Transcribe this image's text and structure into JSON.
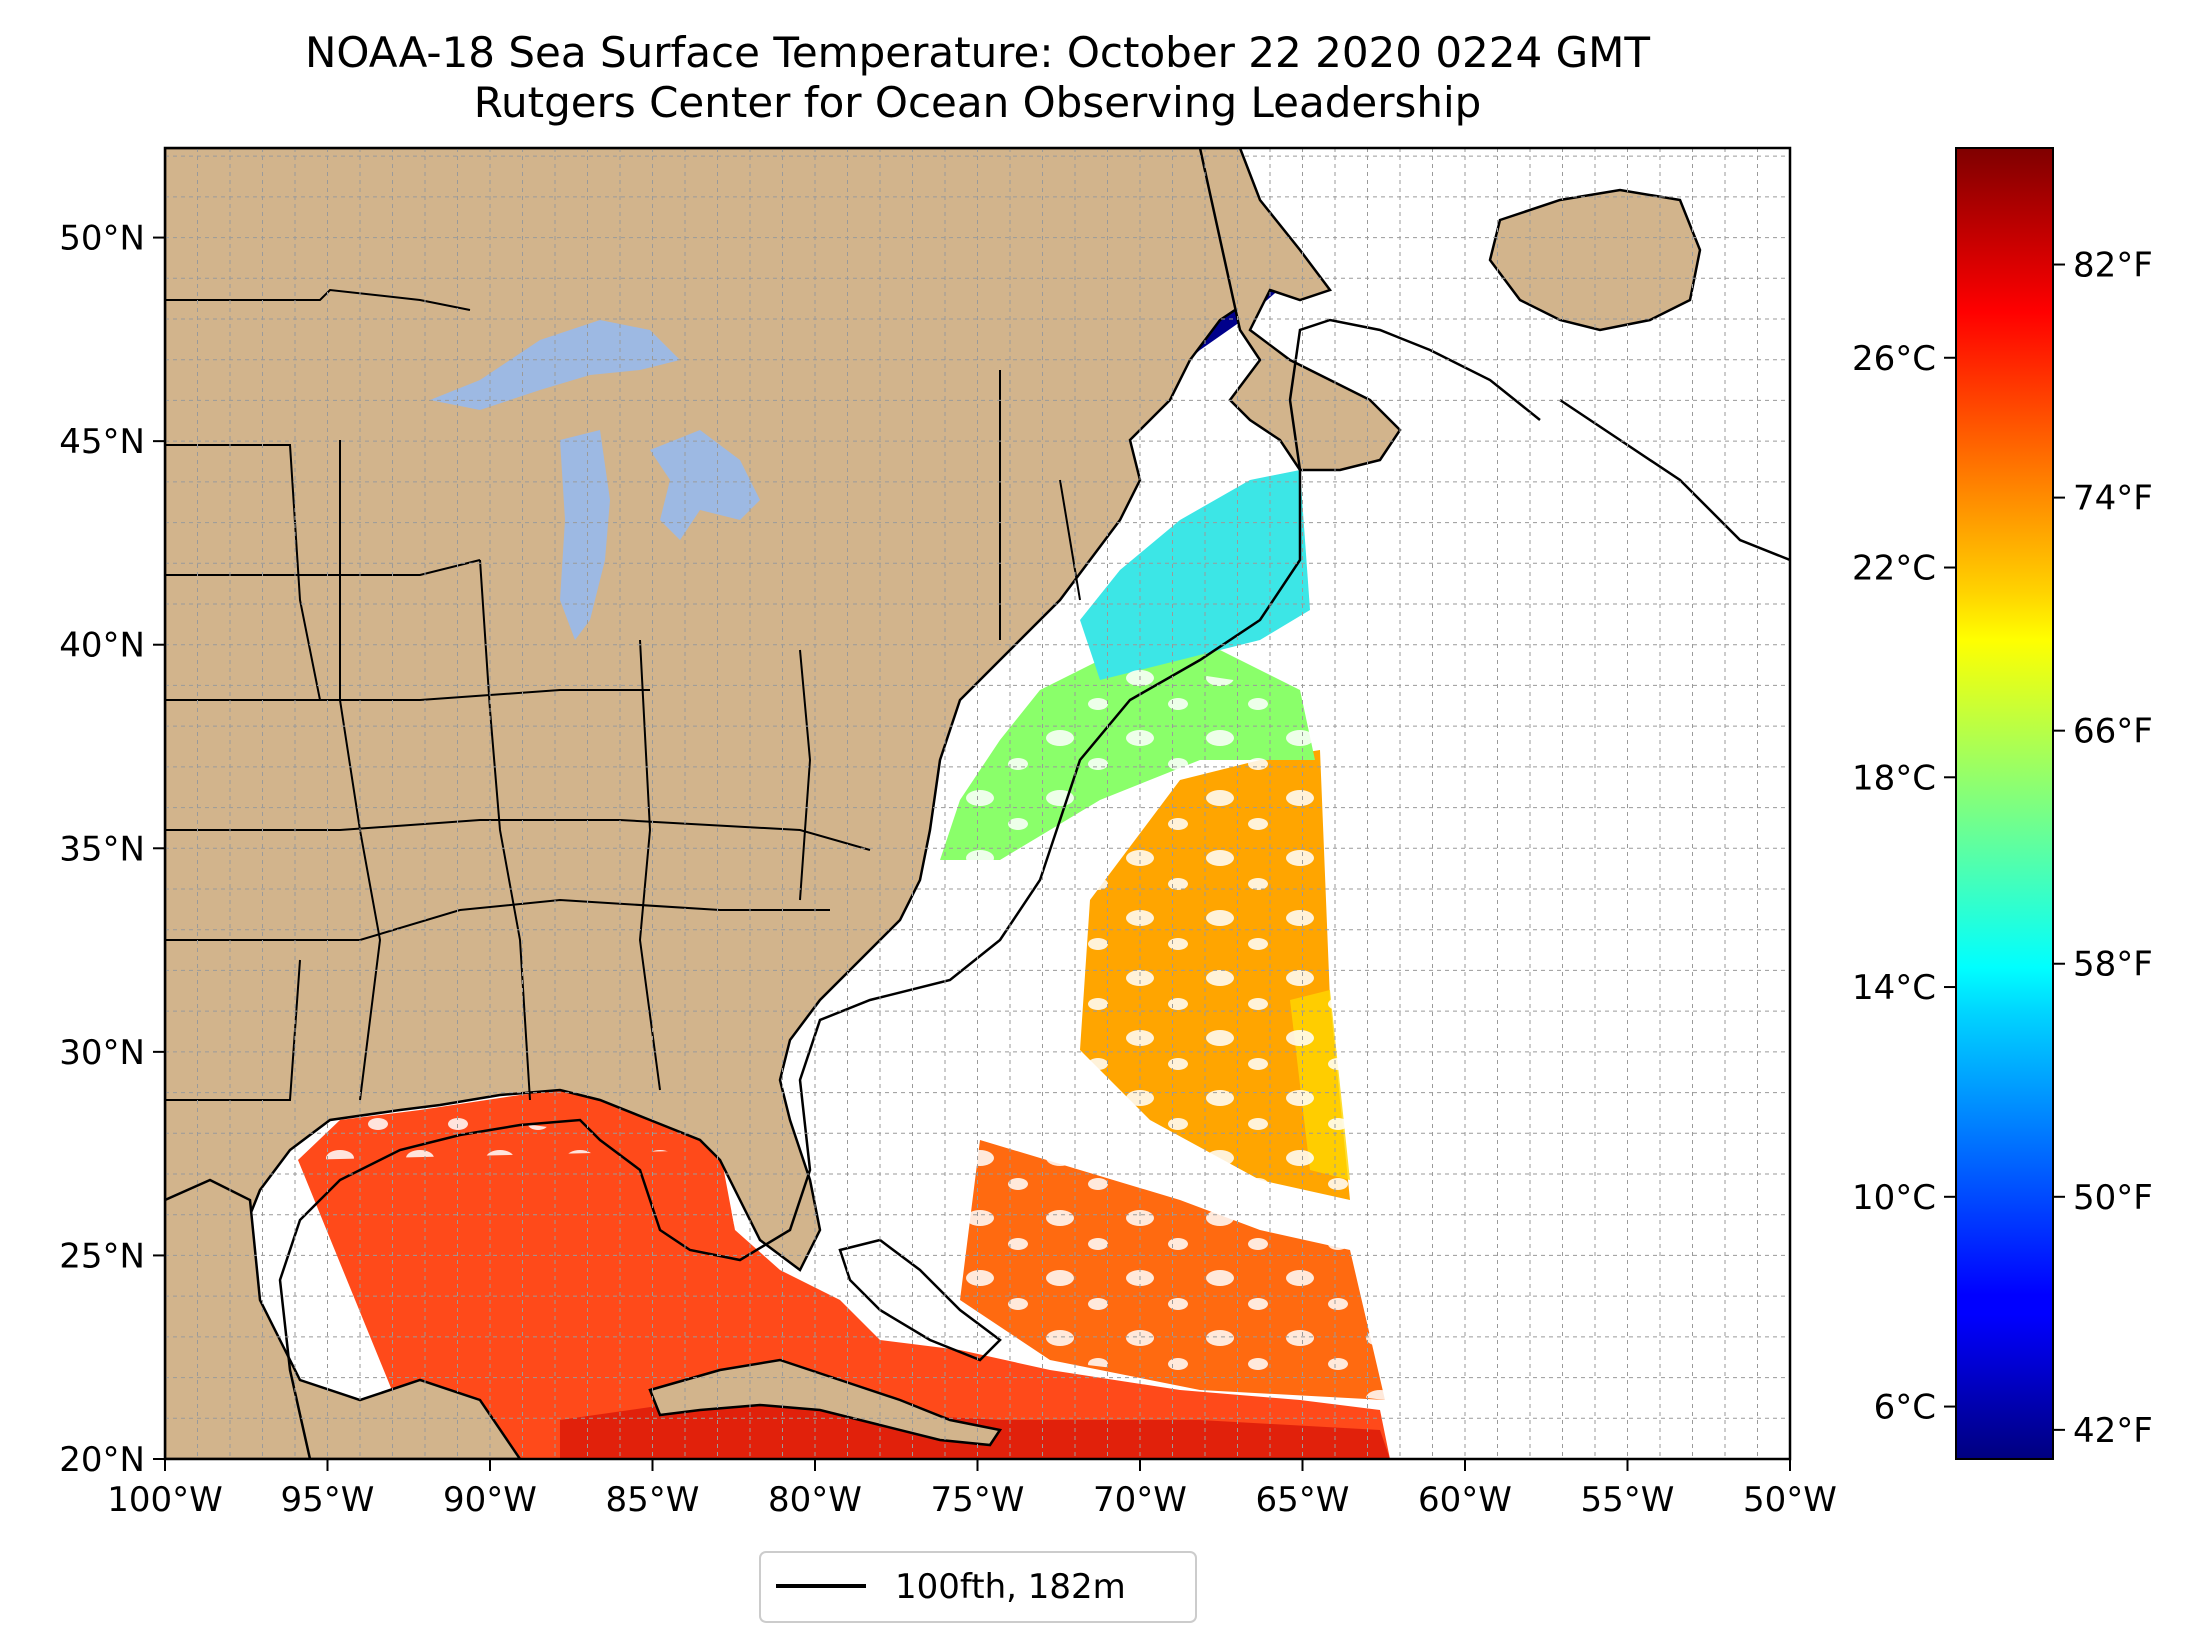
{
  "title": "NOAA-18 Sea Surface Temperature: October 22 2020 0224 GMT",
  "subtitle": "Rutgers Center for Ocean Observing Leadership",
  "map": {
    "lon_range": [
      -100,
      -50
    ],
    "lat_range": [
      20,
      52.2
    ],
    "lon_ticks": [
      -100,
      -95,
      -90,
      -85,
      -80,
      -75,
      -70,
      -65,
      -60,
      -55,
      -50
    ],
    "lon_tick_labels": [
      "100°W",
      "95°W",
      "90°W",
      "85°W",
      "80°W",
      "75°W",
      "70°W",
      "65°W",
      "60°W",
      "55°W",
      "50°W"
    ],
    "lat_ticks": [
      20,
      25,
      30,
      35,
      40,
      45,
      50
    ],
    "lat_tick_labels": [
      "20°N",
      "25°N",
      "30°N",
      "35°N",
      "40°N",
      "45°N",
      "50°N"
    ],
    "grid": true,
    "land_color": "#d2b48c",
    "lake_color": "#9db9e3"
  },
  "colorbar": {
    "colormap": "jet",
    "range_c": [
      5.0,
      30.0
    ],
    "celsius_ticks": [
      6,
      10,
      14,
      18,
      22,
      26
    ],
    "celsius_labels": [
      "6°C",
      "10°C",
      "14°C",
      "18°C",
      "22°C",
      "26°C"
    ],
    "fahrenheit_ticks": [
      42,
      50,
      58,
      66,
      74,
      82
    ],
    "fahrenheit_labels": [
      "42°F",
      "50°F",
      "58°F",
      "66°F",
      "74°F",
      "82°F"
    ]
  },
  "legend": {
    "label": "100fth, 182m",
    "placement": "bottom-center"
  }
}
